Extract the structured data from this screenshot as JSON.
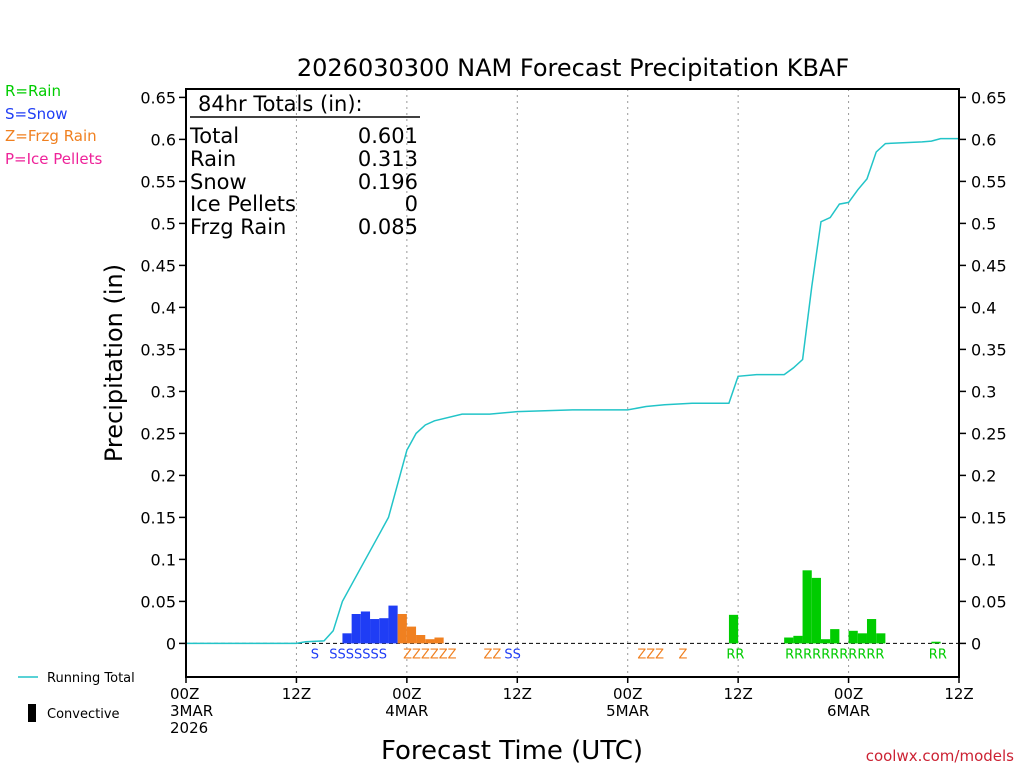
{
  "chart_data": {
    "type": "bar",
    "title": "2026030300 NAM Forecast Precipitation KBAF",
    "xlabel": "Forecast Time (UTC)",
    "ylabel": "Precipitation (in)",
    "ylim": [
      -0.04,
      0.66
    ],
    "xlim_hours": [
      0,
      84
    ],
    "y_ticks": [
      0,
      0.05,
      0.1,
      0.15,
      0.2,
      0.25,
      0.3,
      0.35,
      0.4,
      0.45,
      0.5,
      0.55,
      0.6,
      0.65
    ],
    "y_tick_labels": [
      "0",
      "0.05",
      "0.1",
      "0.15",
      "0.2",
      "0.25",
      "0.3",
      "0.35",
      "0.4",
      "0.45",
      "0.5",
      "0.55",
      "0.6",
      "0.65"
    ],
    "x_ticks": [
      {
        "hour": 0,
        "lines": [
          "00Z",
          "3MAR",
          "2026"
        ]
      },
      {
        "hour": 12,
        "lines": [
          "12Z"
        ]
      },
      {
        "hour": 24,
        "lines": [
          "00Z",
          "4MAR"
        ]
      },
      {
        "hour": 36,
        "lines": [
          "12Z"
        ]
      },
      {
        "hour": 48,
        "lines": [
          "00Z",
          "5MAR"
        ]
      },
      {
        "hour": 60,
        "lines": [
          "12Z"
        ]
      },
      {
        "hour": 72,
        "lines": [
          "00Z",
          "6MAR"
        ]
      },
      {
        "hour": 84,
        "lines": [
          "12Z"
        ]
      }
    ],
    "grid_hours": [
      12,
      24,
      36,
      48,
      60,
      72
    ],
    "bar_width_hours": 1,
    "colors": {
      "rain": "#00cc00",
      "snow": "#1f3df5",
      "frzg": "#f08020",
      "ice": "#ee2299",
      "total_line": "#22c4c8"
    },
    "bars": [
      {
        "hour": 17,
        "value": 0.012,
        "type": "snow"
      },
      {
        "hour": 18,
        "value": 0.035,
        "type": "snow"
      },
      {
        "hour": 19,
        "value": 0.038,
        "type": "snow"
      },
      {
        "hour": 20,
        "value": 0.029,
        "type": "snow"
      },
      {
        "hour": 21,
        "value": 0.03,
        "type": "snow"
      },
      {
        "hour": 22,
        "value": 0.045,
        "type": "snow"
      },
      {
        "hour": 23,
        "value": 0.035,
        "type": "frzg"
      },
      {
        "hour": 24,
        "value": 0.02,
        "type": "frzg"
      },
      {
        "hour": 25,
        "value": 0.01,
        "type": "frzg"
      },
      {
        "hour": 26,
        "value": 0.005,
        "type": "frzg"
      },
      {
        "hour": 27,
        "value": 0.007,
        "type": "frzg"
      },
      {
        "hour": 59,
        "value": 0.034,
        "type": "rain"
      },
      {
        "hour": 65,
        "value": 0.007,
        "type": "rain"
      },
      {
        "hour": 66,
        "value": 0.009,
        "type": "rain"
      },
      {
        "hour": 67,
        "value": 0.087,
        "type": "rain"
      },
      {
        "hour": 68,
        "value": 0.078,
        "type": "rain"
      },
      {
        "hour": 69,
        "value": 0.005,
        "type": "rain"
      },
      {
        "hour": 70,
        "value": 0.017,
        "type": "rain"
      },
      {
        "hour": 72,
        "value": 0.015,
        "type": "rain"
      },
      {
        "hour": 73,
        "value": 0.012,
        "type": "rain"
      },
      {
        "hour": 74,
        "value": 0.029,
        "type": "rain"
      },
      {
        "hour": 75,
        "value": 0.012,
        "type": "rain"
      },
      {
        "hour": 81,
        "value": 0.002,
        "type": "rain"
      }
    ],
    "running_total": {
      "name": "Running Total",
      "hours": [
        0,
        12,
        13,
        15,
        16,
        17,
        19,
        21,
        22,
        23,
        24,
        25,
        26,
        27,
        30,
        33,
        36,
        42,
        48,
        50,
        52,
        55,
        58,
        59,
        60,
        62,
        63,
        64,
        65,
        66,
        67,
        68,
        69,
        70,
        71,
        72,
        73,
        74,
        75,
        76,
        80,
        81,
        82,
        84
      ],
      "values": [
        0,
        0,
        0.002,
        0.003,
        0.015,
        0.05,
        0.09,
        0.13,
        0.15,
        0.19,
        0.23,
        0.25,
        0.26,
        0.265,
        0.273,
        0.273,
        0.276,
        0.278,
        0.278,
        0.282,
        0.284,
        0.286,
        0.286,
        0.286,
        0.318,
        0.32,
        0.32,
        0.32,
        0.32,
        0.328,
        0.338,
        0.425,
        0.502,
        0.507,
        0.523,
        0.525,
        0.54,
        0.553,
        0.585,
        0.595,
        0.597,
        0.598,
        0.601,
        0.601
      ]
    },
    "precip_type_labels": [
      {
        "hour": 14,
        "text": "S",
        "type": "snow"
      },
      {
        "hour": 18.7,
        "text": "SSSSSSS",
        "type": "snow"
      },
      {
        "hour": 26.5,
        "text": "ZZZZZZ",
        "type": "frzg"
      },
      {
        "hour": 33.3,
        "text": "ZZ",
        "type": "frzg"
      },
      {
        "hour": 35.5,
        "text": "SS",
        "type": "snow"
      },
      {
        "hour": 50.5,
        "text": "ZZZ",
        "type": "frzg"
      },
      {
        "hour": 54,
        "text": "Z",
        "type": "frzg"
      },
      {
        "hour": 59.7,
        "text": "RR",
        "type": "rain"
      },
      {
        "hour": 70.5,
        "text": "RRRRRRRRRRR",
        "type": "rain"
      },
      {
        "hour": 81.7,
        "text": "RR",
        "type": "rain"
      }
    ],
    "totals_box": {
      "heading": "84hr Totals (in):",
      "rows": [
        {
          "label": "Total",
          "value": "0.601"
        },
        {
          "label": "Rain",
          "value": "0.313"
        },
        {
          "label": "Snow",
          "value": "0.196"
        },
        {
          "label": "Ice Pellets",
          "value": "0"
        },
        {
          "label": "Frzg Rain",
          "value": "0.085"
        }
      ]
    }
  },
  "type_legend": [
    {
      "text": "R=Rain",
      "color": "#00cc00"
    },
    {
      "text": "S=Snow",
      "color": "#1f3df5"
    },
    {
      "text": "Z=Frzg Rain",
      "color": "#f08020"
    },
    {
      "text": "P=Ice Pellets",
      "color": "#ee2299"
    }
  ],
  "bottom_legend": {
    "running_total": "Running Total",
    "convective": "Convective"
  },
  "credit": {
    "text": "coolwx.com/models",
    "color": "#cc2233"
  }
}
